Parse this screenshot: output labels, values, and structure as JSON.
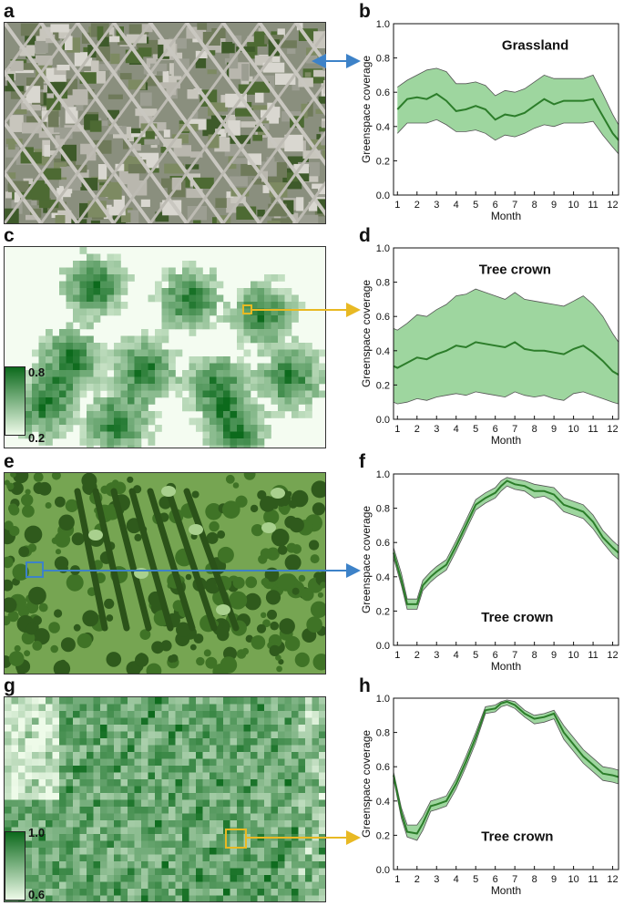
{
  "letters": {
    "a": "a",
    "b": "b",
    "c": "c",
    "d": "d",
    "e": "e",
    "f": "f",
    "g": "g",
    "h": "h"
  },
  "legend_c": {
    "max": "0.8",
    "min": "0.2",
    "colors": [
      "#0c6a1c",
      "#eefbe9"
    ]
  },
  "legend_g": {
    "max": "1.0",
    "min": "0.6",
    "colors": [
      "#0c6a1c",
      "#eefbe9"
    ]
  },
  "colors": {
    "line": "#2c7d2a",
    "band": "#8dcf8e",
    "band_stroke": "#555555",
    "arrow_blue": "#3d82c8",
    "arrow_yellow": "#e8b923"
  },
  "chart_data": [
    {
      "id": "b",
      "type": "line",
      "annotation": "Grassland",
      "xlabel": "Month",
      "ylabel": "Greenspace coverage",
      "xlim": [
        0.8,
        12.3
      ],
      "ylim": [
        0,
        1
      ],
      "xticks": [
        1,
        2,
        3,
        4,
        5,
        6,
        7,
        8,
        9,
        10,
        11,
        12
      ],
      "yticks": [
        0.0,
        0.2,
        0.4,
        0.6,
        0.8,
        1.0
      ],
      "x": [
        1,
        1.5,
        2,
        2.5,
        3,
        3.5,
        4,
        4.5,
        5,
        5.5,
        6,
        6.5,
        7,
        7.5,
        8,
        8.5,
        9,
        9.5,
        10,
        10.5,
        11,
        11.5,
        12,
        12.3
      ],
      "mean": [
        0.5,
        0.56,
        0.57,
        0.56,
        0.59,
        0.55,
        0.49,
        0.5,
        0.52,
        0.5,
        0.44,
        0.47,
        0.46,
        0.48,
        0.52,
        0.56,
        0.53,
        0.55,
        0.55,
        0.55,
        0.56,
        0.46,
        0.36,
        0.32
      ],
      "upper": [
        0.63,
        0.67,
        0.7,
        0.73,
        0.74,
        0.72,
        0.65,
        0.65,
        0.66,
        0.64,
        0.58,
        0.61,
        0.6,
        0.62,
        0.66,
        0.7,
        0.68,
        0.68,
        0.68,
        0.68,
        0.7,
        0.59,
        0.47,
        0.41
      ],
      "lower": [
        0.36,
        0.42,
        0.42,
        0.42,
        0.44,
        0.41,
        0.37,
        0.37,
        0.38,
        0.36,
        0.32,
        0.35,
        0.34,
        0.36,
        0.39,
        0.41,
        0.4,
        0.42,
        0.42,
        0.42,
        0.43,
        0.35,
        0.28,
        0.24
      ]
    },
    {
      "id": "d",
      "type": "line",
      "annotation": "Tree crown",
      "xlabel": "Month",
      "ylabel": "Greenspace coverage",
      "xlim": [
        0.8,
        12.3
      ],
      "ylim": [
        0,
        1
      ],
      "xticks": [
        1,
        2,
        3,
        4,
        5,
        6,
        7,
        8,
        9,
        10,
        11,
        12
      ],
      "yticks": [
        0.0,
        0.2,
        0.4,
        0.6,
        0.8,
        1.0
      ],
      "x": [
        0.8,
        1,
        1.5,
        2,
        2.5,
        3,
        3.5,
        4,
        4.5,
        5,
        5.5,
        6,
        6.5,
        7,
        7.5,
        8,
        8.5,
        9,
        9.5,
        10,
        10.5,
        11,
        11.5,
        12,
        12.3
      ],
      "mean": [
        0.31,
        0.3,
        0.33,
        0.36,
        0.35,
        0.38,
        0.4,
        0.43,
        0.42,
        0.45,
        0.44,
        0.43,
        0.42,
        0.45,
        0.41,
        0.4,
        0.4,
        0.39,
        0.38,
        0.41,
        0.43,
        0.39,
        0.34,
        0.28,
        0.26
      ],
      "upper": [
        0.53,
        0.52,
        0.56,
        0.61,
        0.6,
        0.64,
        0.67,
        0.72,
        0.73,
        0.76,
        0.74,
        0.72,
        0.7,
        0.74,
        0.7,
        0.69,
        0.68,
        0.67,
        0.66,
        0.69,
        0.72,
        0.67,
        0.6,
        0.5,
        0.45
      ],
      "lower": [
        0.1,
        0.09,
        0.1,
        0.12,
        0.11,
        0.13,
        0.14,
        0.15,
        0.14,
        0.16,
        0.15,
        0.14,
        0.13,
        0.16,
        0.14,
        0.13,
        0.14,
        0.12,
        0.11,
        0.15,
        0.16,
        0.14,
        0.12,
        0.1,
        0.09
      ]
    },
    {
      "id": "f",
      "type": "line",
      "annotation": "Tree crown",
      "xlabel": "Month",
      "ylabel": "Greenspace coverage",
      "xlim": [
        0.8,
        12.3
      ],
      "ylim": [
        0,
        1
      ],
      "xticks": [
        1,
        2,
        3,
        4,
        5,
        6,
        7,
        8,
        9,
        10,
        11,
        12
      ],
      "yticks": [
        0.0,
        0.2,
        0.4,
        0.6,
        0.8,
        1.0
      ],
      "x": [
        0.8,
        1.2,
        1.5,
        2,
        2.3,
        2.7,
        3,
        3.5,
        4,
        4.5,
        5,
        5.5,
        6,
        6.3,
        6.6,
        7,
        7.5,
        8,
        8.5,
        9,
        9.5,
        10,
        10.5,
        11,
        11.5,
        12,
        12.3
      ],
      "mean": [
        0.54,
        0.38,
        0.24,
        0.24,
        0.35,
        0.4,
        0.43,
        0.47,
        0.58,
        0.7,
        0.82,
        0.86,
        0.89,
        0.93,
        0.96,
        0.94,
        0.93,
        0.9,
        0.9,
        0.88,
        0.82,
        0.8,
        0.78,
        0.72,
        0.63,
        0.57,
        0.54
      ],
      "upper": [
        0.57,
        0.42,
        0.27,
        0.27,
        0.38,
        0.43,
        0.46,
        0.5,
        0.61,
        0.73,
        0.85,
        0.89,
        0.92,
        0.96,
        0.98,
        0.97,
        0.96,
        0.94,
        0.93,
        0.92,
        0.86,
        0.84,
        0.82,
        0.76,
        0.67,
        0.61,
        0.58
      ],
      "lower": [
        0.51,
        0.35,
        0.21,
        0.21,
        0.32,
        0.37,
        0.4,
        0.44,
        0.55,
        0.67,
        0.79,
        0.83,
        0.86,
        0.9,
        0.93,
        0.91,
        0.9,
        0.86,
        0.87,
        0.84,
        0.78,
        0.76,
        0.74,
        0.68,
        0.6,
        0.53,
        0.5
      ]
    },
    {
      "id": "h",
      "type": "line",
      "annotation": "Tree crown",
      "xlabel": "Month",
      "ylabel": "Greenspace coverage",
      "xlim": [
        0.8,
        12.3
      ],
      "ylim": [
        0,
        1
      ],
      "xticks": [
        1,
        2,
        3,
        4,
        5,
        6,
        7,
        8,
        9,
        10,
        11,
        12
      ],
      "yticks": [
        0.0,
        0.2,
        0.4,
        0.6,
        0.8,
        1.0
      ],
      "x": [
        0.8,
        1.2,
        1.5,
        2,
        2.3,
        2.7,
        3,
        3.5,
        4,
        4.5,
        5,
        5.5,
        6,
        6.3,
        6.6,
        7,
        7.5,
        8,
        8.5,
        9,
        9.5,
        10,
        10.5,
        11,
        11.5,
        12,
        12.3
      ],
      "mean": [
        0.55,
        0.33,
        0.22,
        0.21,
        0.27,
        0.37,
        0.38,
        0.4,
        0.5,
        0.63,
        0.77,
        0.93,
        0.94,
        0.97,
        0.98,
        0.96,
        0.91,
        0.88,
        0.89,
        0.91,
        0.8,
        0.73,
        0.66,
        0.61,
        0.56,
        0.55,
        0.54
      ],
      "upper": [
        0.57,
        0.36,
        0.26,
        0.26,
        0.31,
        0.4,
        0.41,
        0.43,
        0.53,
        0.66,
        0.8,
        0.95,
        0.96,
        0.98,
        0.99,
        0.98,
        0.93,
        0.9,
        0.91,
        0.93,
        0.84,
        0.77,
        0.7,
        0.65,
        0.6,
        0.59,
        0.58
      ],
      "lower": [
        0.53,
        0.3,
        0.19,
        0.17,
        0.23,
        0.34,
        0.35,
        0.37,
        0.47,
        0.6,
        0.74,
        0.91,
        0.92,
        0.95,
        0.96,
        0.94,
        0.89,
        0.85,
        0.86,
        0.88,
        0.76,
        0.69,
        0.62,
        0.57,
        0.52,
        0.51,
        0.5
      ]
    }
  ]
}
